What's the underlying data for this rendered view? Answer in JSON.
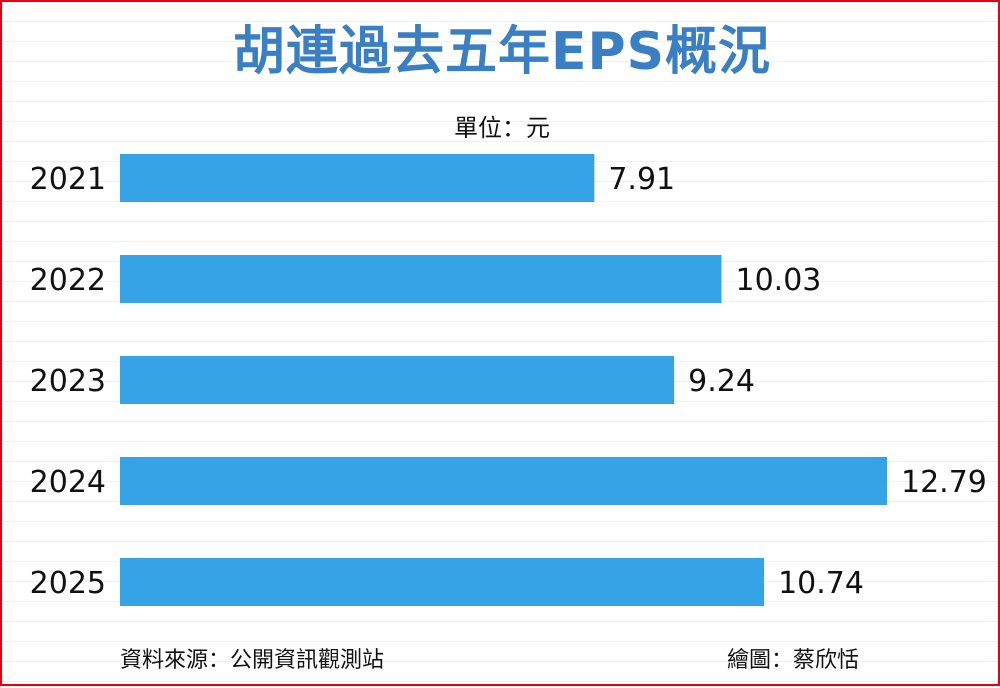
{
  "title": "胡連過去五年EPS概況",
  "unit_label": "單位：元",
  "source_label": "資料來源：公開資訊觀測站",
  "credit_label": "繪圖：蔡欣恬",
  "colors": {
    "bar": "#36a3e6",
    "title": "#3a7fc3",
    "frame": "#e60012",
    "text": "#111111"
  },
  "chart_data": {
    "type": "bar",
    "orientation": "horizontal",
    "categories": [
      "2021",
      "2022",
      "2023",
      "2024",
      "2025"
    ],
    "values": [
      7.91,
      10.03,
      9.24,
      12.79,
      10.74
    ],
    "value_labels": [
      "7.91",
      "10.03",
      "9.24",
      "12.79",
      "10.74"
    ],
    "title": "胡連過去五年EPS概況",
    "xlabel": "",
    "ylabel": "",
    "grid": false,
    "legend": "none"
  }
}
